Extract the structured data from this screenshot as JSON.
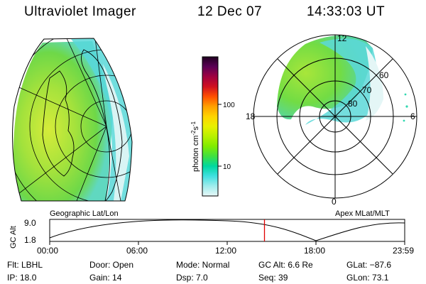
{
  "header": {
    "title": "Ultraviolet Imager",
    "date": "12 Dec 07",
    "time": "14:33:03 UT"
  },
  "colorbar": {
    "unit": "photon cm",
    "unit_exp_1": "-2",
    "unit_s": "s",
    "unit_exp_2": "-1",
    "ticks": [
      "100",
      "10"
    ],
    "colors": [
      "#200020",
      "#5a0055",
      "#a00040",
      "#d01020",
      "#ff5000",
      "#ffa000",
      "#ffd400",
      "#e8f000",
      "#b8f000",
      "#80ec00",
      "#40e040",
      "#00d8a0",
      "#40e0e0",
      "#a0ecec",
      "#e8f8f8"
    ]
  },
  "geo_map": {
    "label": "Geographic Lat/Lon"
  },
  "polar_map": {
    "label": "Apex MLat/MLT",
    "mlt_labels": {
      "top": "12",
      "left": "18",
      "right": "6",
      "bottom": "0"
    },
    "lat_labels": [
      "60",
      "70",
      "80"
    ]
  },
  "altitude_plot": {
    "ylabel": "GC Alt",
    "yticks": [
      "9.0",
      "1.8"
    ],
    "xticks": [
      "00:00",
      "06:00",
      "12:00",
      "18:00",
      "23:59"
    ],
    "current_time_fraction": 0.605
  },
  "footer": {
    "filter": "Flt: LBHL",
    "ip": "IP: 18.0",
    "door": "Door: Open",
    "gain": "Gain: 14",
    "mode": "Mode: Normal",
    "dsp": "Dsp:     7.0",
    "gc_alt": "GC Alt: 6.6 Re",
    "seq": "Seq: 39",
    "glat": "GLat: −87.6",
    "glon": "GLon:  73.1"
  }
}
